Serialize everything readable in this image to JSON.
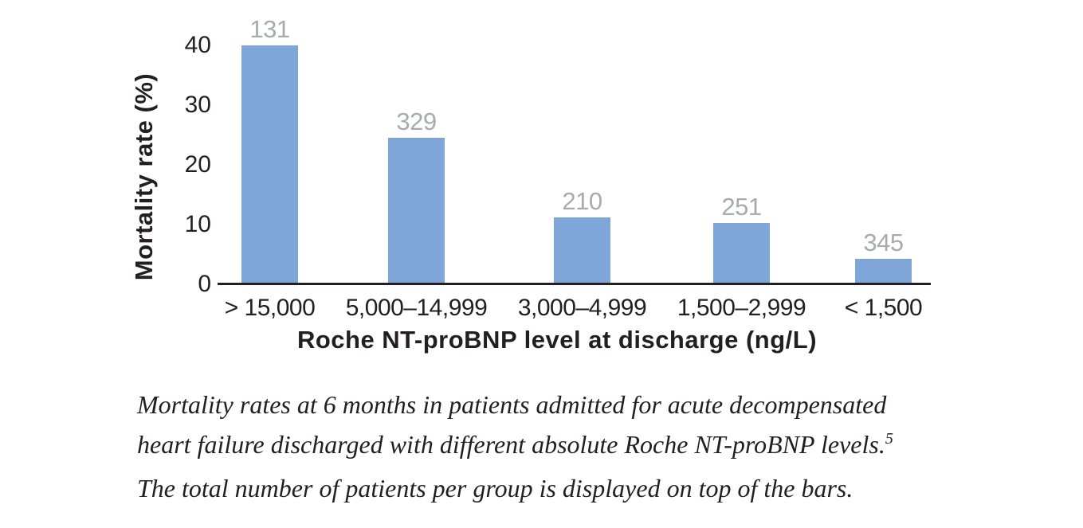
{
  "chart_data": {
    "type": "bar",
    "title": "",
    "categories": [
      "> 15,000",
      "5,000–14,999",
      "3,000–4,999",
      "1,500–2,999",
      "< 1,500"
    ],
    "values": [
      40,
      24.5,
      11.2,
      10.3,
      4.3
    ],
    "bar_top_labels": [
      "131",
      "329",
      "210",
      "251",
      "345"
    ],
    "xlabel": "Roche NT-proBNP level at discharge (ng/L)",
    "ylabel": "Mortality rate (%)",
    "yticks": [
      0,
      10,
      20,
      30,
      40
    ],
    "ylim": [
      0,
      42
    ],
    "grid": false,
    "legend": "none",
    "bar_color": "#7ea6d8",
    "bar_label_color": "#a8aaac",
    "ink_color": "#231f20"
  },
  "caption": {
    "line1": "Mortality rates at 6 months in patients admitted for acute decompensated",
    "line2": "heart failure discharged with different absolute Roche NT-proBNP levels.",
    "line2_reference": "5",
    "line3": "The total number of patients per group is displayed on top of the bars."
  }
}
